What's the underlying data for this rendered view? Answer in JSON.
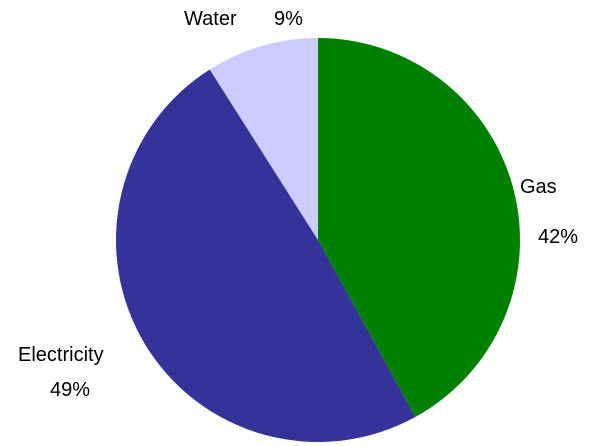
{
  "chart_data": {
    "type": "pie",
    "title": "",
    "slices": [
      {
        "label": "Gas",
        "percent_label": "42%",
        "value": 42,
        "color": "#008000"
      },
      {
        "label": "Electricity",
        "percent_label": "49%",
        "value": 49,
        "color": "#333399"
      },
      {
        "label": "Water",
        "percent_label": "9%",
        "value": 9,
        "color": "#ccccff"
      }
    ],
    "start_angle_deg": 0,
    "direction": "clockwise",
    "legend": "none"
  }
}
